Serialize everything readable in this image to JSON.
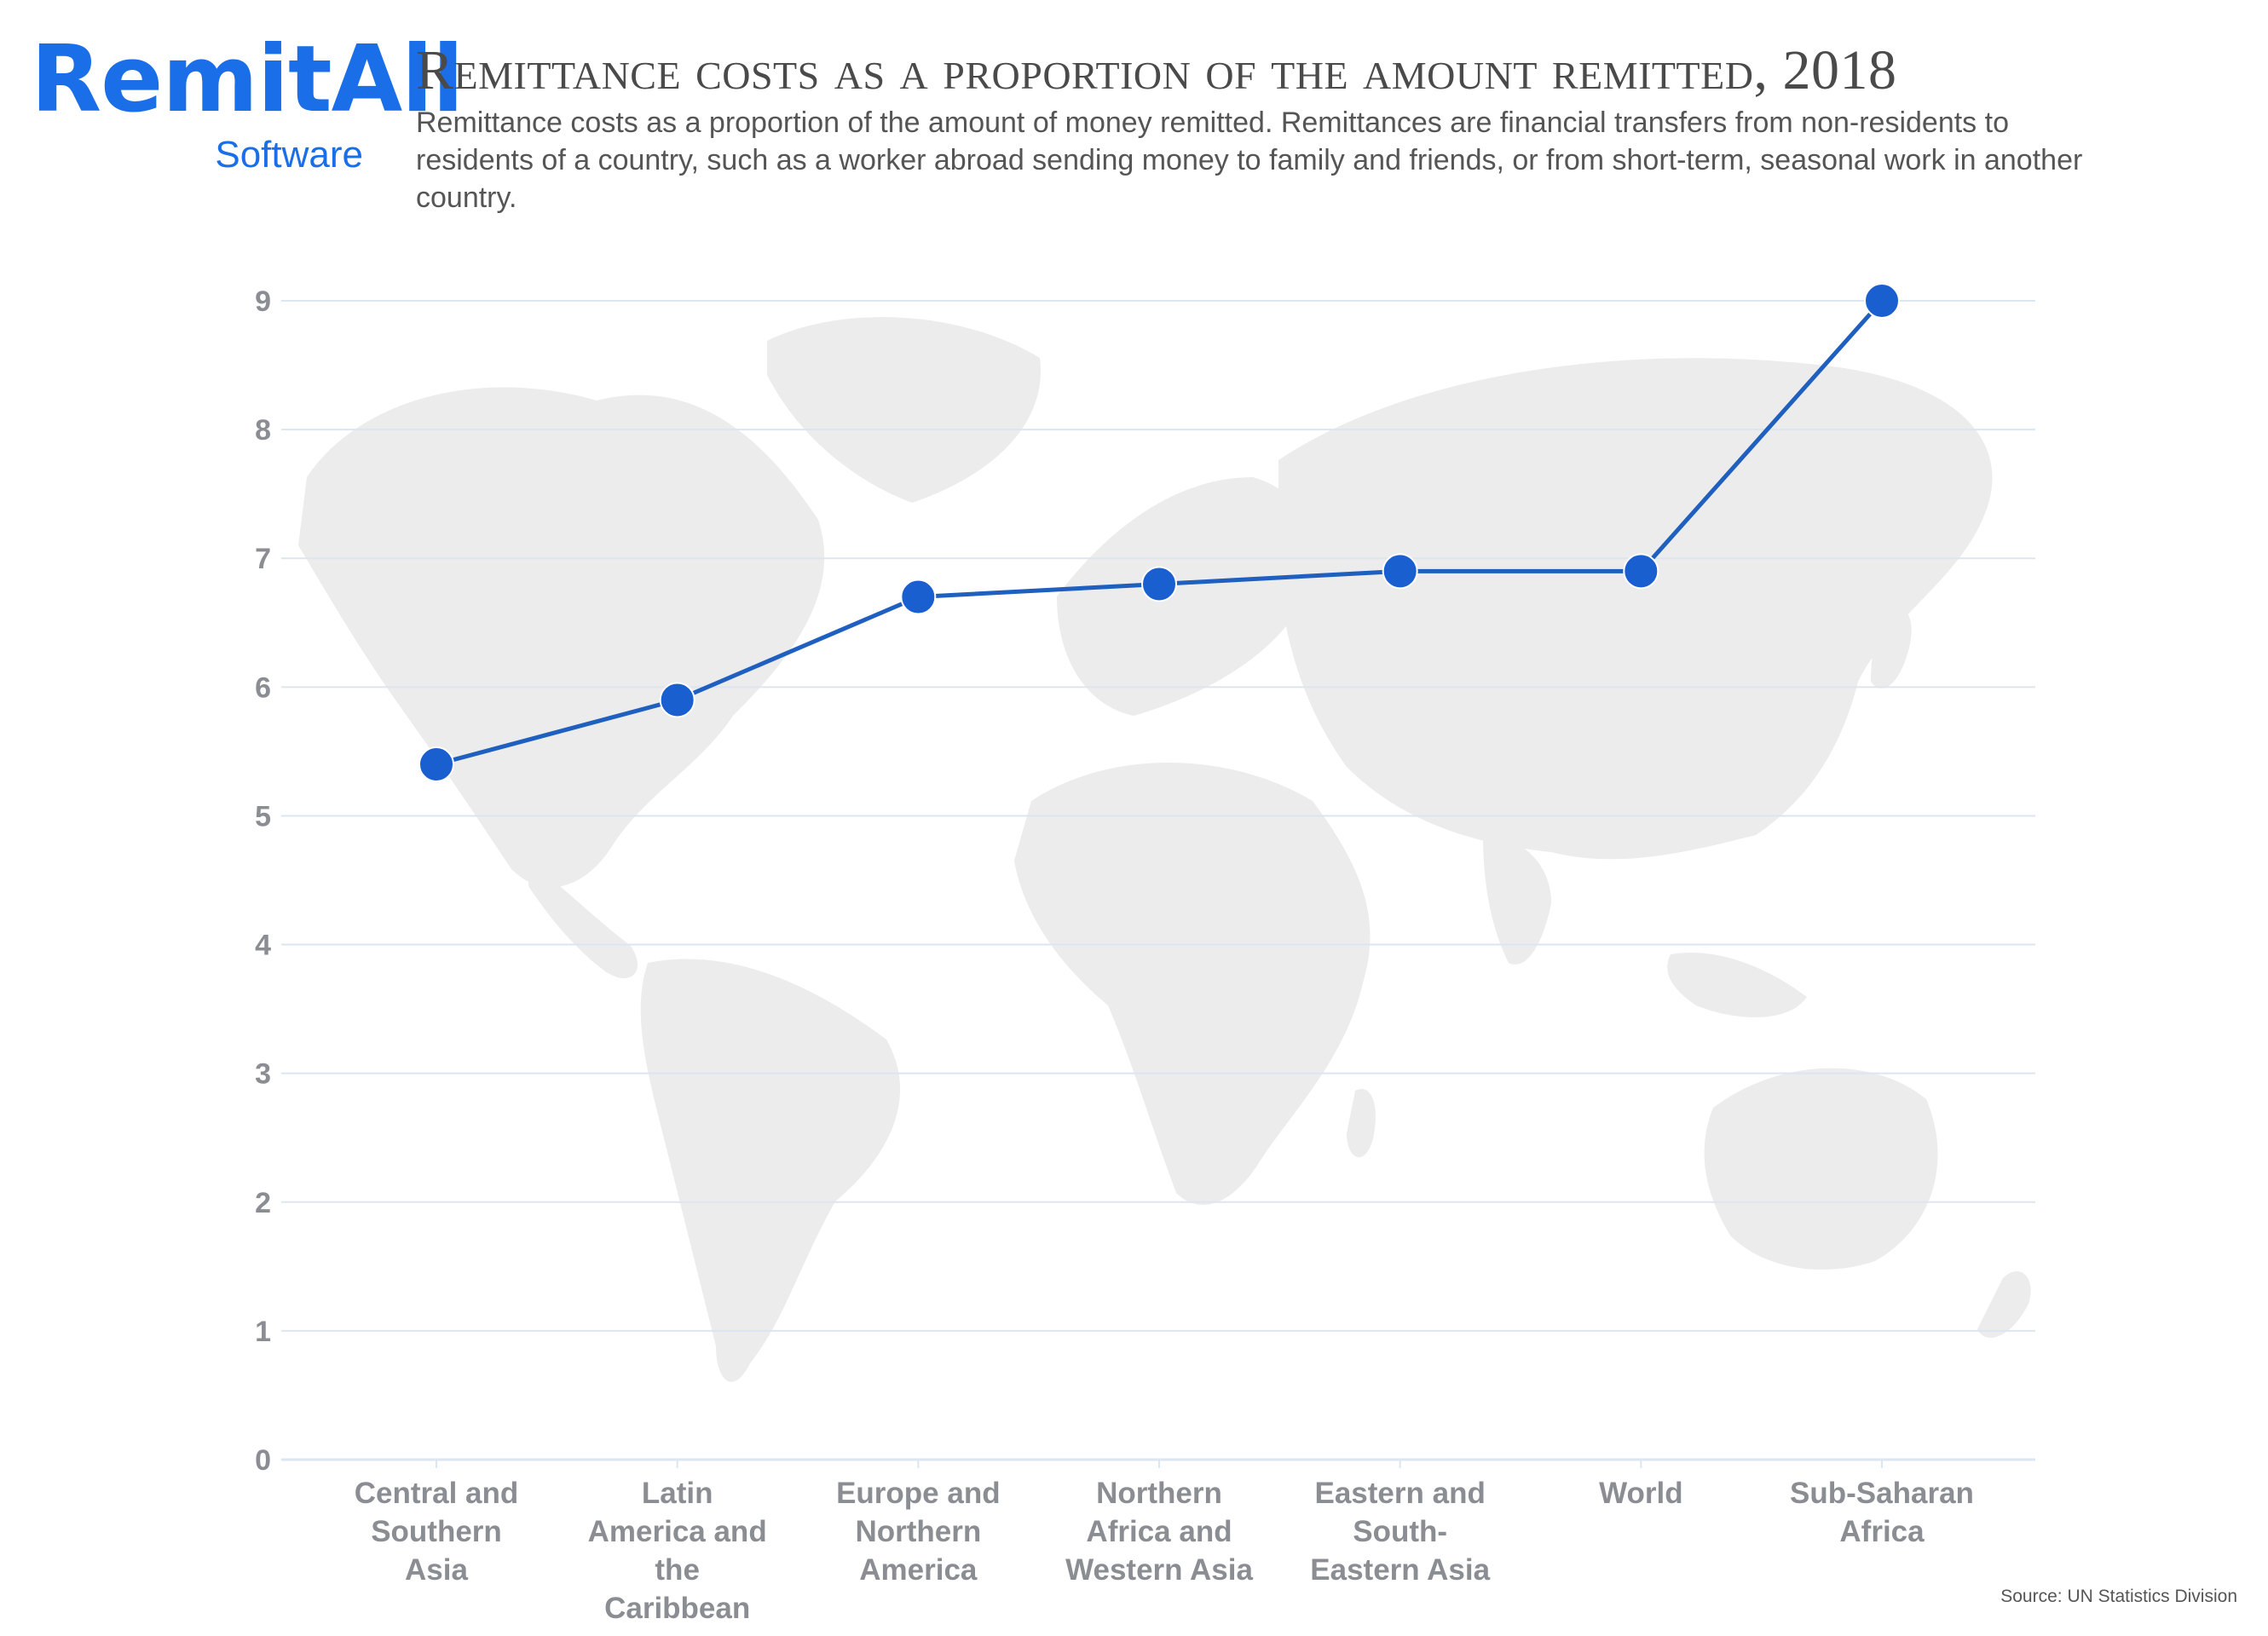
{
  "logo": {
    "main": "RemitAll",
    "sub": "Software"
  },
  "title": "Remittance costs as a proportion of the amount remitted, 2018",
  "subtitle": "Remittance costs as a proportion of the amount of money remitted. Remittances are financial transfers from non-residents to residents of a country, such as a worker abroad sending money to family and friends, or from short-term, seasonal work in another country.",
  "source": "Source: UN Statistics Division",
  "colors": {
    "line": "#1f5fbf",
    "marker": "#1a5fd0",
    "grid": "#dbe6f0",
    "map": "#ececec"
  },
  "chart_data": {
    "type": "line",
    "categories": [
      "Central and Southern Asia",
      "Latin America and the Caribbean",
      "Europe and Northern America",
      "Northern Africa and Western Asia",
      "Eastern and South-Eastern Asia",
      "World",
      "Sub-Saharan Africa"
    ],
    "category_lines": [
      [
        "Central and",
        "Southern",
        "Asia"
      ],
      [
        "Latin",
        "America and",
        "the",
        "Caribbean"
      ],
      [
        "Europe and",
        "Northern",
        "America"
      ],
      [
        "Northern",
        "Africa and",
        "Western Asia"
      ],
      [
        "Eastern and",
        "South-",
        "Eastern Asia"
      ],
      [
        "World"
      ],
      [
        "Sub-Saharan",
        "Africa"
      ]
    ],
    "values": [
      5.4,
      5.9,
      6.7,
      6.8,
      6.9,
      6.9,
      9.0
    ],
    "ylim": [
      0,
      9
    ],
    "yticks": [
      0,
      1,
      2,
      3,
      4,
      5,
      6,
      7,
      8,
      9
    ],
    "grid": true,
    "background": "world map"
  }
}
